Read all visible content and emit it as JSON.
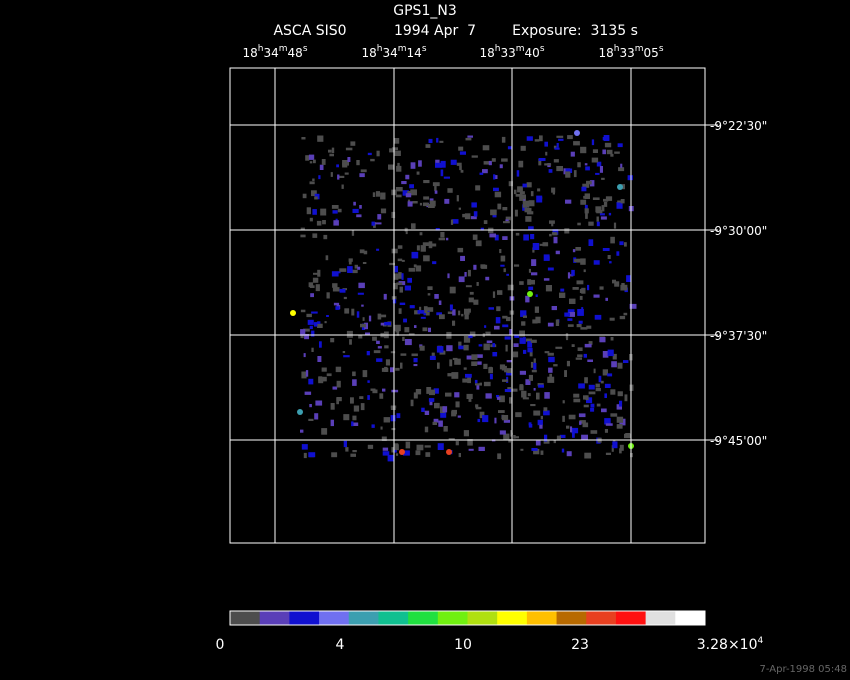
{
  "header": {
    "title": "GPS1_N3",
    "instrument": "ASCA SIS0",
    "date": "1994 Apr  7",
    "exposure": "Exposure:  3135 s"
  },
  "ra_labels": [
    [
      "18",
      "h",
      "34",
      "m",
      "48",
      "s"
    ],
    [
      "18",
      "h",
      "34",
      "m",
      "14",
      "s"
    ],
    [
      "18",
      "h",
      "33",
      "m",
      "40",
      "s"
    ],
    [
      "18",
      "h",
      "33",
      "m",
      "05",
      "s"
    ]
  ],
  "dec_labels": [
    "-9°22'30\"",
    "-9°30'00\"",
    "-9°37'30\"",
    "-9°45'00\""
  ],
  "colorbar": {
    "colors": [
      "#4d4d4d",
      "#5a3fb8",
      "#1010d0",
      "#7070f0",
      "#3c9fb0",
      "#10c090",
      "#20e040",
      "#70f010",
      "#b0e010",
      "#ffff00",
      "#ffc000",
      "#b86a00",
      "#e84020",
      "#ff1010",
      "#e0e0e0",
      "#ffffff"
    ],
    "labels": [
      [
        "0"
      ],
      [
        "4"
      ],
      [
        "10"
      ],
      [
        "23"
      ],
      [
        "3.28×10",
        "4"
      ]
    ]
  },
  "timestamp": "7-Apr-1998 05:48"
}
